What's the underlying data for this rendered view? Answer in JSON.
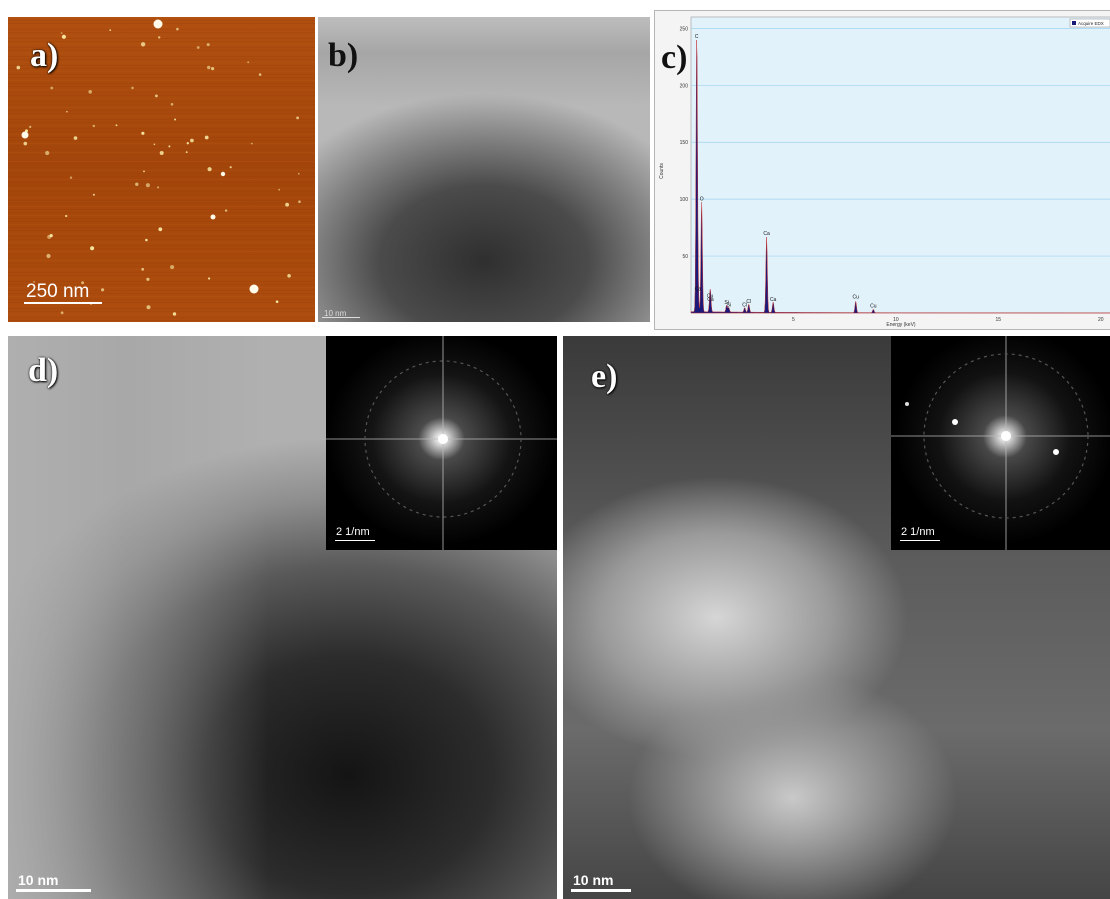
{
  "panels": {
    "a": {
      "label": "a)",
      "scale_bar": "250 nm",
      "colors": {
        "bg": "#a9490c",
        "particle": "#f6e6a0"
      }
    },
    "b": {
      "label": "b)",
      "scale_bar": "10 nm"
    },
    "c": {
      "label": "c)"
    },
    "d": {
      "label": "d)",
      "scale_bar": "10 nm",
      "inset_scale": "2 1/nm"
    },
    "e": {
      "label": "e)",
      "scale_bar": "10 nm",
      "inset_scale": "2 1/nm"
    }
  },
  "chart_data": {
    "type": "line",
    "title": "",
    "xlabel": "Energy (keV)",
    "ylabel": "Counts",
    "legend": {
      "entry": "Acquire EDX",
      "placement": "top-right"
    },
    "xlim": [
      0,
      20.5
    ],
    "ylim": [
      0,
      260
    ],
    "x_ticks": [
      5,
      10,
      15,
      20
    ],
    "y_ticks": [
      50,
      100,
      150,
      200,
      250
    ],
    "grid": true,
    "colors": {
      "plot_bg": "#e2f2fb",
      "grid": "#9fd3ef",
      "fill": "#1a1878",
      "edge": "#c23030"
    },
    "peaks": [
      {
        "element": "C",
        "energy": 0.28,
        "counts": 240
      },
      {
        "element": "O",
        "energy": 0.52,
        "counts": 97
      },
      {
        "element": "Ca",
        "energy": 0.34,
        "counts": 18
      },
      {
        "element": "Cu",
        "energy": 0.93,
        "counts": 12
      },
      {
        "element": "Ca",
        "energy": 0.95,
        "counts": 9
      },
      {
        "element": "Si",
        "energy": 1.74,
        "counts": 6
      },
      {
        "element": "Si",
        "energy": 1.84,
        "counts": 4
      },
      {
        "element": "Cl",
        "energy": 2.62,
        "counts": 4
      },
      {
        "element": "Cl",
        "energy": 2.82,
        "counts": 7
      },
      {
        "element": "Ca",
        "energy": 3.69,
        "counts": 66
      },
      {
        "element": "Ca",
        "energy": 4.01,
        "counts": 9
      },
      {
        "element": "Cu",
        "energy": 8.04,
        "counts": 10
      },
      {
        "element": "Cu",
        "energy": 8.9,
        "counts": 3
      }
    ]
  }
}
